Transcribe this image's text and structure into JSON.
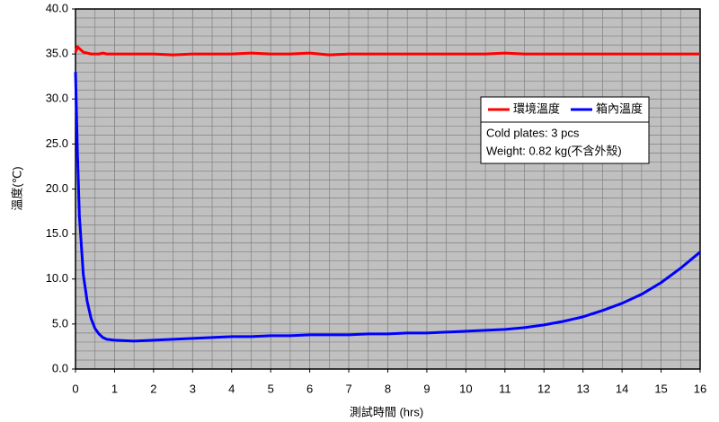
{
  "chart_data": {
    "type": "line",
    "x_label": "測試時間 (hrs)",
    "y_label": "溫度(℃)",
    "x": [
      0,
      0.05,
      0.1,
      0.2,
      0.3,
      0.4,
      0.5,
      0.6,
      0.7,
      0.8,
      1,
      1.5,
      2,
      2.5,
      3,
      3.5,
      4,
      4.5,
      5,
      5.5,
      6,
      6.5,
      7,
      7.5,
      8,
      8.5,
      9,
      9.5,
      10,
      10.5,
      11,
      11.5,
      12,
      12.5,
      13,
      13.5,
      14,
      14.5,
      15,
      15.5,
      16
    ],
    "series": [
      {
        "name": "環境溫度",
        "color": "#ff0000",
        "values": [
          35.2,
          35.8,
          35.6,
          35.2,
          35.1,
          35.0,
          35.0,
          35.0,
          35.1,
          35.0,
          35.0,
          35.0,
          35.0,
          34.9,
          35.0,
          35.0,
          35.0,
          35.1,
          35.0,
          35.0,
          35.1,
          34.9,
          35.0,
          35.0,
          35.0,
          35.0,
          35.0,
          35.0,
          35.0,
          35.0,
          35.1,
          35.0,
          35.0,
          35.0,
          35.0,
          35.0,
          35.0,
          35.0,
          35.0,
          35.0,
          35.0
        ]
      },
      {
        "name": "箱內溫度",
        "color": "#0000ff",
        "values": [
          33,
          24,
          17,
          10.5,
          7.5,
          5.6,
          4.5,
          3.9,
          3.5,
          3.3,
          3.2,
          3.1,
          3.2,
          3.3,
          3.4,
          3.5,
          3.6,
          3.6,
          3.7,
          3.7,
          3.8,
          3.8,
          3.8,
          3.9,
          3.9,
          4.0,
          4.0,
          4.1,
          4.2,
          4.3,
          4.4,
          4.6,
          4.9,
          5.3,
          5.8,
          6.5,
          7.3,
          8.3,
          9.6,
          11.2,
          13.0
        ]
      }
    ],
    "annotations": [
      "Cold plates: 3 pcs",
      "Weight: 0.82 kg(不含外殼)"
    ],
    "xlim": [
      0,
      16
    ],
    "xticks": [
      0,
      1,
      2,
      3,
      4,
      5,
      6,
      7,
      8,
      9,
      10,
      11,
      12,
      13,
      14,
      15,
      16
    ],
    "ylim": [
      0,
      40
    ],
    "yticks": [
      {
        "value": 0,
        "label": "0.0"
      },
      {
        "value": 5,
        "label": "5.0"
      },
      {
        "value": 10,
        "label": "10.0"
      },
      {
        "value": 15,
        "label": "15.0"
      },
      {
        "value": 20,
        "label": "20.0"
      },
      {
        "value": 25,
        "label": "25.0"
      },
      {
        "value": 30,
        "label": "30.0"
      },
      {
        "value": 35,
        "label": "35.0"
      },
      {
        "value": 40,
        "label": "40.0"
      }
    ],
    "grid": true,
    "legend": "right",
    "background": "#c0c0c0"
  }
}
